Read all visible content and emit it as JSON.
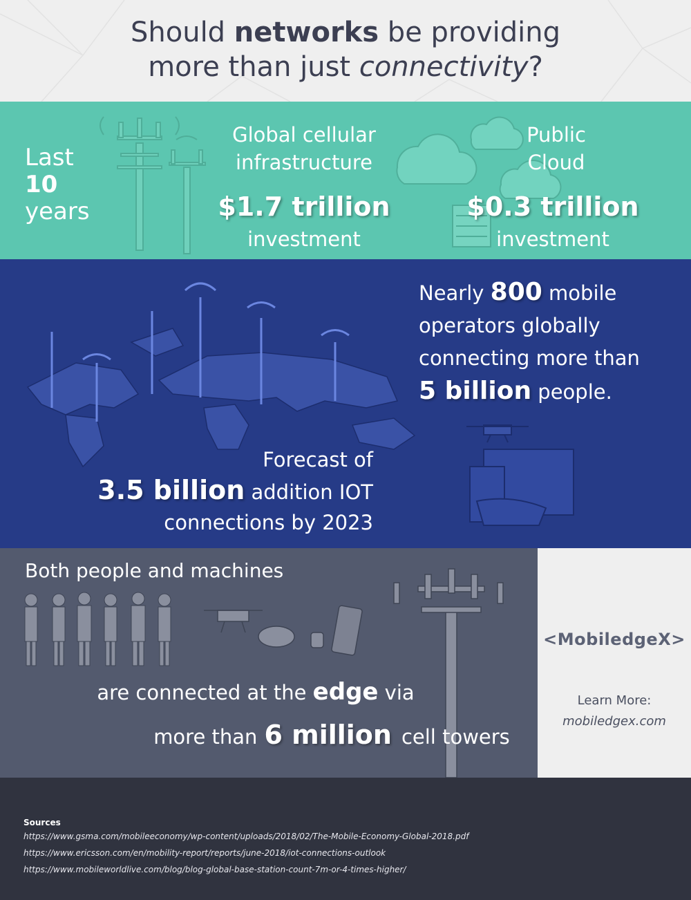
{
  "header": {
    "title_line1_pre": "Should ",
    "title_line1_bold": "networks",
    "title_line1_post": " be providing",
    "title_line2_pre": "more than just ",
    "title_line2_italic": "connectivity",
    "title_line2_post": "?"
  },
  "infrastructure": {
    "period_line1": "Last",
    "period_line2": "10",
    "period_line3": "years",
    "cellular_label_line1": "Global cellular",
    "cellular_label_line2": "infrastructure",
    "cellular_value": "$1.7 trillion",
    "cellular_suffix": "investment",
    "cloud_label_line1": "Public",
    "cloud_label_line2": "Cloud",
    "cloud_value": "$0.3 trillion",
    "cloud_suffix": "investment"
  },
  "operators": {
    "line1_pre": "Nearly ",
    "line1_big": "800",
    "line1_post": " mobile",
    "line2": "operators globally",
    "line3": "connecting more than",
    "line4_big": "5 billion",
    "line4_post": " people."
  },
  "iot": {
    "line1": "Forecast of",
    "line2_big": "3.5 billion",
    "line2_post": " addition IOT",
    "line3": "connections by 2023"
  },
  "edge": {
    "heading": "Both people and machines",
    "line1_pre": "are connected at the ",
    "line1_bold": "edge",
    "line1_post": " via",
    "line2_pre": "more than",
    "line2_big": "6 million",
    "line2_post": "cell towers"
  },
  "brand": {
    "logo": "<MobiledgeX>",
    "learn_more": "Learn More:",
    "website": "mobiledgex.com"
  },
  "sources": {
    "heading": "Sources",
    "links": [
      "https://www.gsma.com/mobileeconomy/wp-content/uploads/2018/02/The-Mobile-Economy-Global-2018.pdf",
      "https://www.ericsson.com/en/mobility-report/reports/june-2018/iot-connections-outlook",
      "https://www.mobileworldlive.com/blog/blog-global-base-station-count-7m-or-4-times-higher/"
    ]
  },
  "colors": {
    "header_bg": "#efefef",
    "teal": "#5cc6b0",
    "blue": "#263b87",
    "gray": "#535a6e",
    "dark": "#30333f",
    "title_text": "#3c3f52"
  }
}
